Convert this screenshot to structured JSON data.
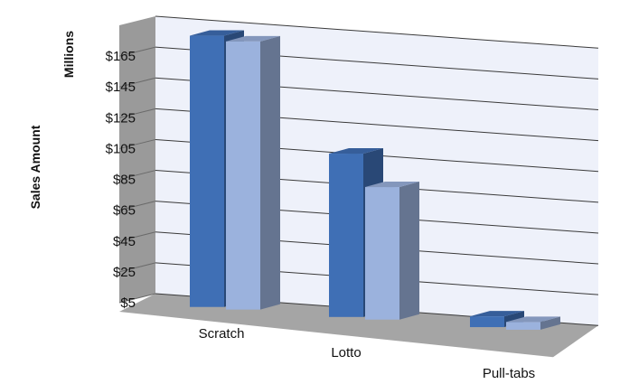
{
  "chart_data": {
    "type": "bar",
    "style": "3d-clustered-column",
    "categories": [
      "Scratch",
      "Lotto",
      "Pull-tabs"
    ],
    "series": [
      {
        "values": [
          181,
          111,
          12
        ],
        "color": "#3f6fb5"
      },
      {
        "values": [
          179,
          91,
          10
        ],
        "color": "#9bb2dd"
      }
    ],
    "ylabel": "Sales Amount",
    "yunit_label": "Millions",
    "yticks": [
      "$5",
      "$25",
      "$45",
      "$65",
      "$85",
      "$105",
      "$125",
      "$145",
      "$165"
    ],
    "ytick_values": [
      5,
      25,
      45,
      65,
      85,
      105,
      125,
      145,
      165
    ],
    "ylim": [
      5,
      185
    ],
    "grid": true,
    "legend": "none"
  }
}
